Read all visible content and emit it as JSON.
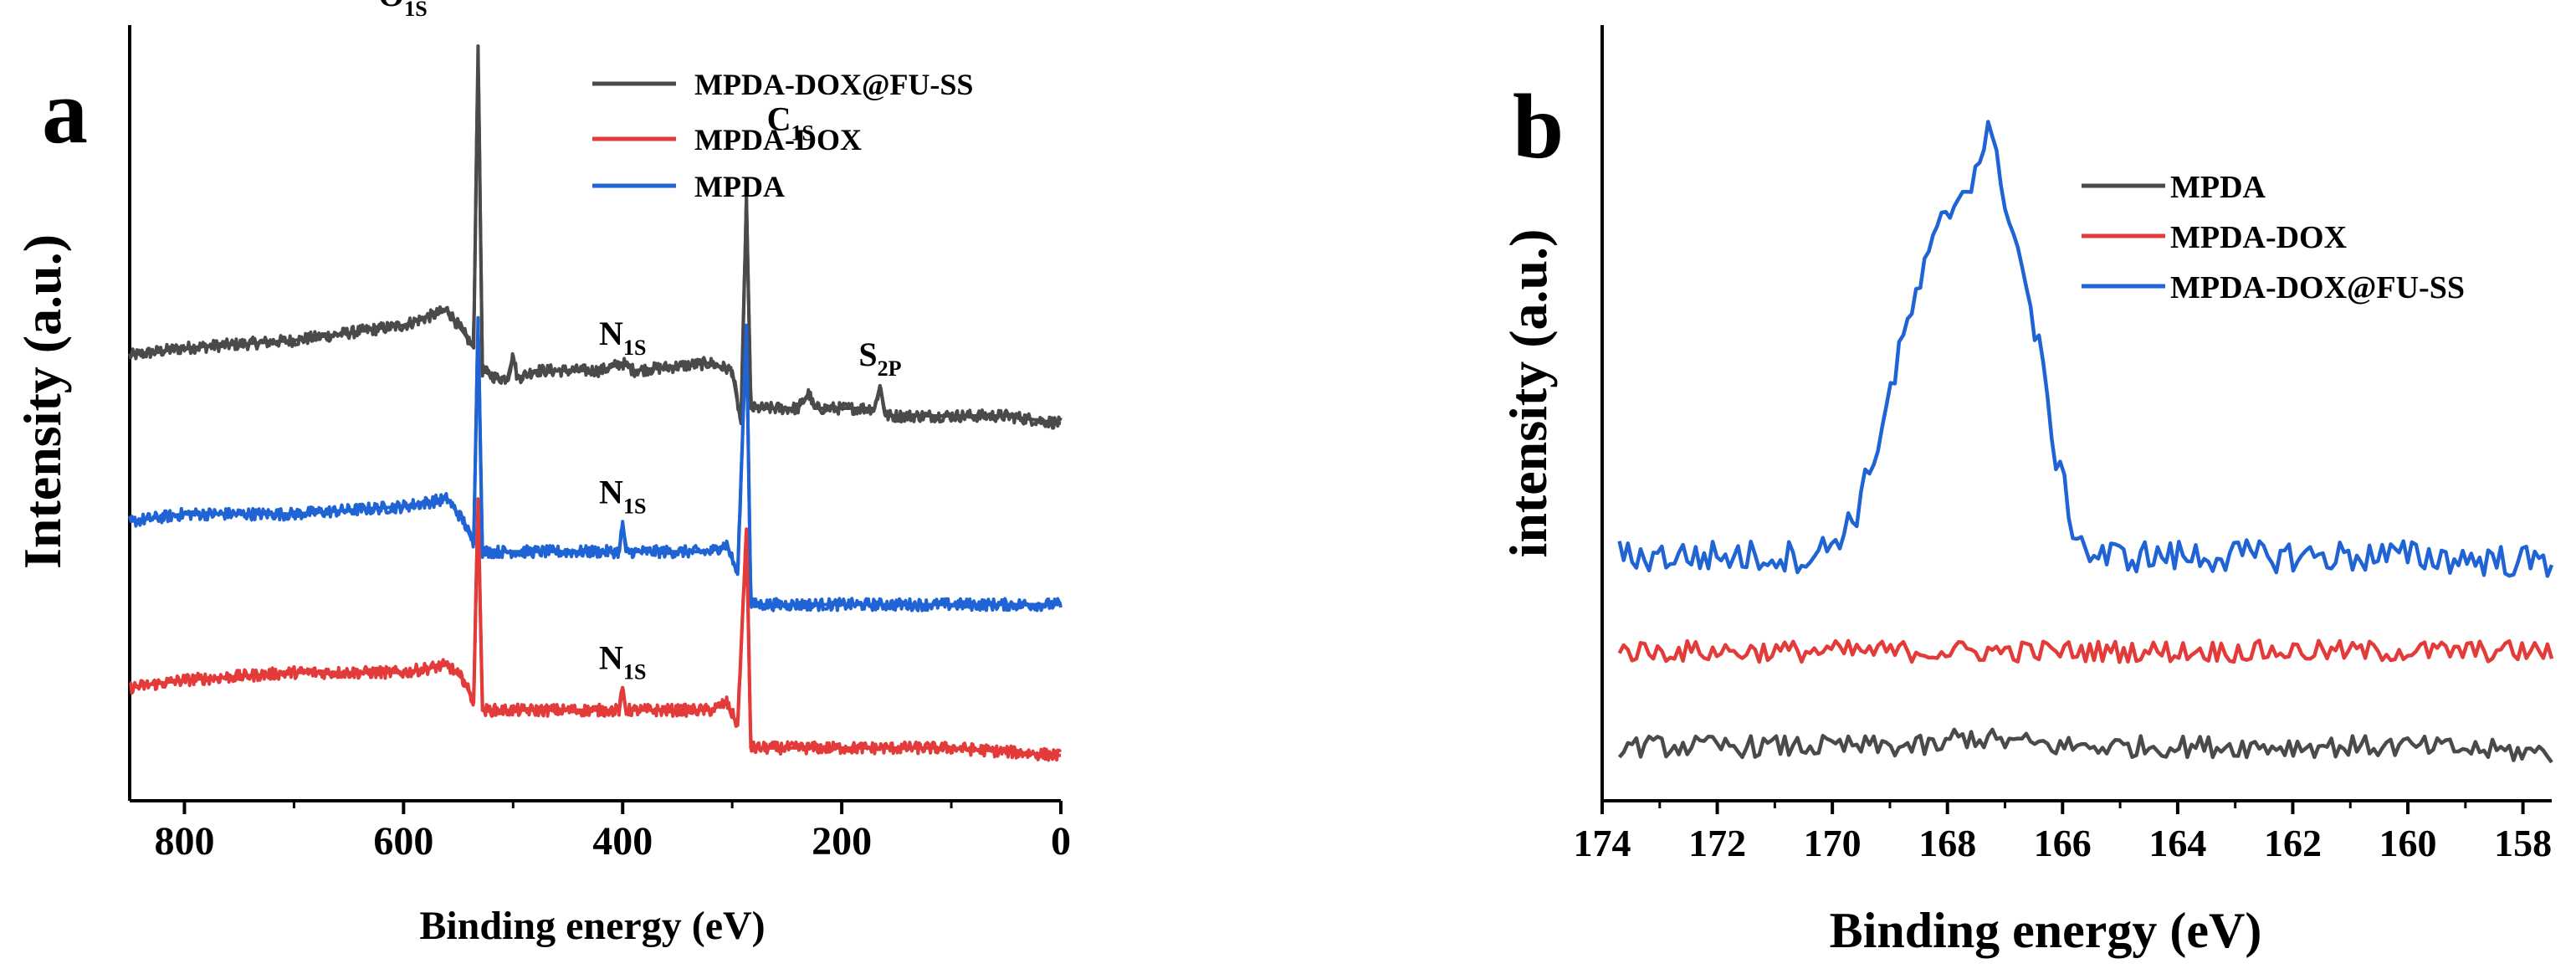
{
  "chart_data": [
    {
      "panel_label": "a",
      "type": "line",
      "xlabel": "Binding energy (eV)",
      "ylabel": "Intensity (a.u.)",
      "xlim": [
        850,
        0
      ],
      "ylim": [
        0,
        100
      ],
      "x_ticks": [
        "800",
        "600",
        "400",
        "200",
        "0"
      ],
      "x_tick_values": [
        800,
        600,
        400,
        200,
        0
      ],
      "legend": [
        "MPDA-DOX@FU-SS",
        "MPDA-DOX",
        "MPDA"
      ],
      "series": [
        {
          "name": "MPDA-DOX@FU-SS",
          "color": "#4a4a4a",
          "points": [
            [
              850,
              59
            ],
            [
              800,
              60
            ],
            [
              700,
              61
            ],
            [
              600,
              63
            ],
            [
              560,
              65
            ],
            [
              545,
              62
            ],
            [
              536,
              60
            ],
            [
              532,
              100
            ],
            [
              528,
              57
            ],
            [
              515,
              56
            ],
            [
              505,
              56
            ],
            [
              500,
              59
            ],
            [
              496,
              56
            ],
            [
              480,
              57
            ],
            [
              420,
              57
            ],
            [
              400,
              58
            ],
            [
              390,
              57
            ],
            [
              320,
              58
            ],
            [
              300,
              57
            ],
            [
              292,
              50
            ],
            [
              287,
              80
            ],
            [
              283,
              52
            ],
            [
              240,
              52
            ],
            [
              230,
              54
            ],
            [
              225,
              52
            ],
            [
              170,
              52
            ],
            [
              165,
              55
            ],
            [
              160,
              51
            ],
            [
              100,
              51
            ],
            [
              50,
              51
            ],
            [
              0,
              50
            ]
          ],
          "annotations": [
            {
              "label": "O",
              "sub": "1S",
              "x": 532
            },
            {
              "label": "N",
              "sub": "1S",
              "x": 400
            },
            {
              "label": "C",
              "sub": "1S",
              "x": 285
            },
            {
              "label": "S",
              "sub": "2P",
              "x": 165
            }
          ]
        },
        {
          "name": "MPDA",
          "color": "#1f63d4",
          "points": [
            [
              850,
              37
            ],
            [
              800,
              38
            ],
            [
              700,
              38
            ],
            [
              600,
              39
            ],
            [
              560,
              40
            ],
            [
              545,
              37
            ],
            [
              536,
              34
            ],
            [
              532,
              64
            ],
            [
              528,
              33
            ],
            [
              480,
              33
            ],
            [
              420,
              33
            ],
            [
              403,
              33
            ],
            [
              400,
              37
            ],
            [
              397,
              33
            ],
            [
              320,
              33
            ],
            [
              305,
              34
            ],
            [
              295,
              30
            ],
            [
              287,
              63
            ],
            [
              283,
              26
            ],
            [
              200,
              26
            ],
            [
              100,
              26
            ],
            [
              0,
              26
            ]
          ],
          "annotations": [
            {
              "label": "N",
              "sub": "1S",
              "x": 400
            }
          ]
        },
        {
          "name": "MPDA-DOX",
          "color": "#e33a3a",
          "points": [
            [
              850,
              15
            ],
            [
              800,
              16
            ],
            [
              700,
              17
            ],
            [
              600,
              17
            ],
            [
              560,
              18
            ],
            [
              545,
              16
            ],
            [
              536,
              13
            ],
            [
              532,
              40
            ],
            [
              528,
              12
            ],
            [
              480,
              12
            ],
            [
              420,
              12
            ],
            [
              403,
              12
            ],
            [
              400,
              15
            ],
            [
              397,
              12
            ],
            [
              320,
              12
            ],
            [
              305,
              13
            ],
            [
              295,
              10
            ],
            [
              287,
              36
            ],
            [
              283,
              7
            ],
            [
              200,
              7
            ],
            [
              100,
              7
            ],
            [
              0,
              6
            ]
          ],
          "annotations": [
            {
              "label": "N",
              "sub": "1S",
              "x": 400
            }
          ]
        }
      ]
    },
    {
      "panel_label": "b",
      "type": "line",
      "xlabel": "Binding energy (eV)",
      "ylabel": "intensity (a.u.)",
      "xlim": [
        174,
        157.5
      ],
      "ylim": [
        0,
        100
      ],
      "x_ticks": [
        "174",
        "172",
        "170",
        "168",
        "166",
        "164",
        "162",
        "160",
        "158"
      ],
      "x_tick_values": [
        174,
        172,
        170,
        168,
        166,
        164,
        162,
        160,
        158
      ],
      "legend": [
        "MPDA",
        "MPDA-DOX",
        "MPDA-DOX@FU-SS"
      ],
      "series": [
        {
          "name": "MPDA",
          "color": "#4a4a4a",
          "points": [
            [
              173.7,
              8
            ],
            [
              172,
              8
            ],
            [
              170,
              8
            ],
            [
              168,
              8
            ],
            [
              167.9,
              9.5
            ],
            [
              166,
              8
            ],
            [
              164,
              8
            ],
            [
              162,
              8
            ],
            [
              160,
              8
            ],
            [
              157.5,
              7
            ]
          ],
          "noise": 1.6
        },
        {
          "name": "MPDA-DOX",
          "color": "#e33a3a",
          "points": [
            [
              173.7,
              22
            ],
            [
              172,
              22
            ],
            [
              170,
              22
            ],
            [
              168,
              22
            ],
            [
              166,
              22
            ],
            [
              164,
              22
            ],
            [
              162,
              22
            ],
            [
              160,
              22
            ],
            [
              157.5,
              22
            ]
          ],
          "noise": 1.6
        },
        {
          "name": "MPDA-DOX@FU-SS",
          "color": "#1f63d4",
          "points": [
            [
              173.7,
              36
            ],
            [
              172,
              36
            ],
            [
              171,
              36
            ],
            [
              170.3,
              36
            ],
            [
              170,
              38
            ],
            [
              169.6,
              42
            ],
            [
              169.3,
              50
            ],
            [
              169.0,
              60
            ],
            [
              168.7,
              70
            ],
            [
              168.4,
              78
            ],
            [
              168.1,
              85
            ],
            [
              167.8,
              89
            ],
            [
              167.5,
              93
            ],
            [
              167.3,
              99
            ],
            [
              167.1,
              92
            ],
            [
              166.9,
              86
            ],
            [
              166.7,
              78
            ],
            [
              166.4,
              66
            ],
            [
              166.1,
              50
            ],
            [
              165.8,
              40
            ],
            [
              165.5,
              36
            ],
            [
              164,
              36
            ],
            [
              162,
              36
            ],
            [
              160,
              36
            ],
            [
              157.5,
              35
            ]
          ],
          "noise": 2.4
        }
      ]
    }
  ]
}
